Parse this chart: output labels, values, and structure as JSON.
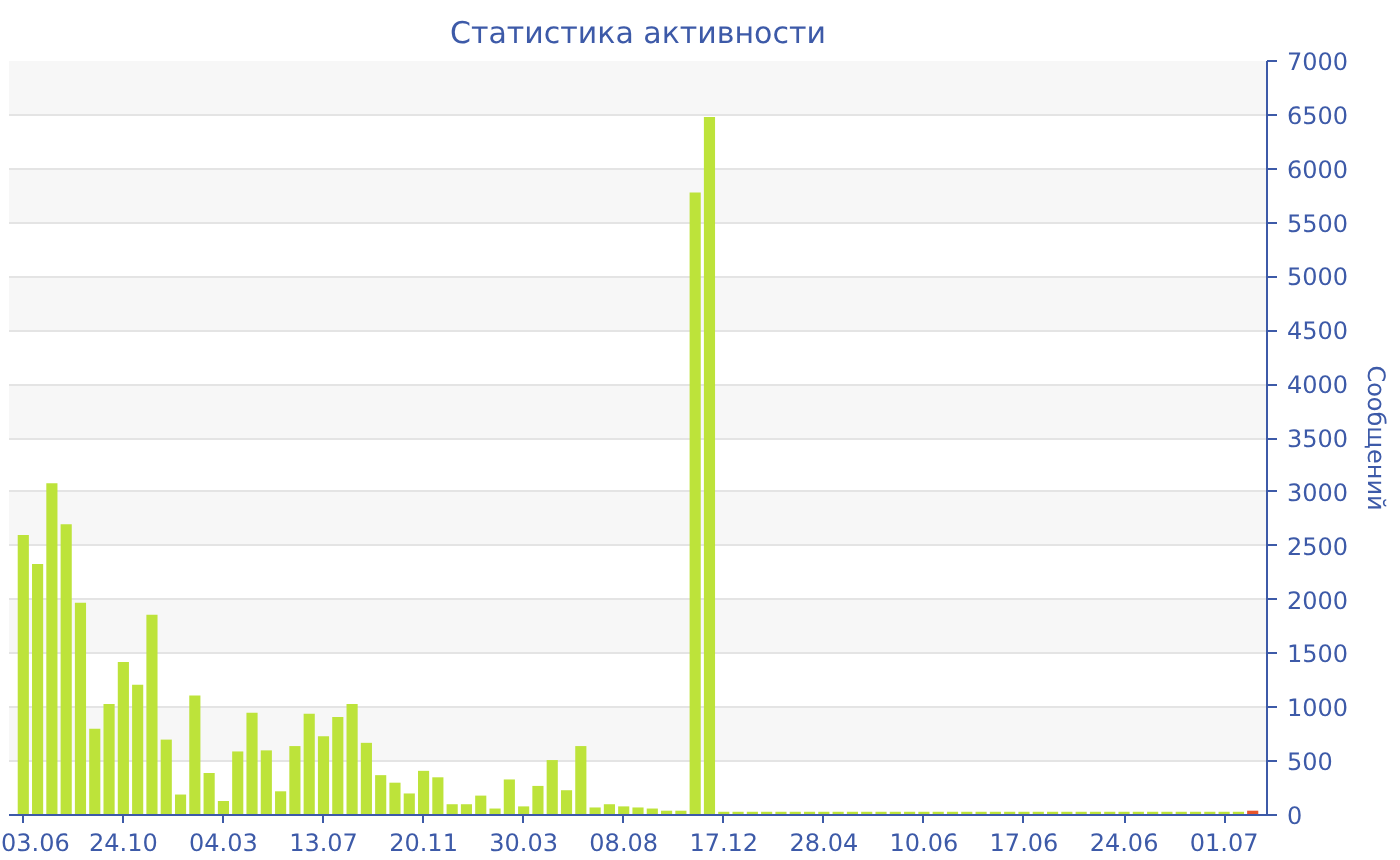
{
  "chart_data": {
    "type": "bar",
    "title": "Статистика активности",
    "ylabel": "Сообщений",
    "categories": [
      "03.06",
      null,
      null,
      null,
      null,
      null,
      null,
      "24.10",
      null,
      null,
      null,
      null,
      null,
      null,
      "04.03",
      null,
      null,
      null,
      null,
      null,
      null,
      "13.07",
      null,
      null,
      null,
      null,
      null,
      null,
      "20.11",
      null,
      null,
      null,
      null,
      null,
      null,
      "30.03",
      null,
      null,
      null,
      null,
      null,
      null,
      "08.08",
      null,
      null,
      null,
      null,
      null,
      null,
      "17.12",
      null,
      null,
      null,
      null,
      null,
      null,
      "28.04",
      null,
      null,
      null,
      null,
      null,
      null,
      "10.06",
      null,
      null,
      null,
      null,
      null,
      null,
      "17.06",
      null,
      null,
      null,
      null,
      null,
      null,
      "24.06",
      null,
      null,
      null,
      null,
      null,
      null,
      "01.07",
      null,
      null
    ],
    "values": [
      2600,
      2330,
      3080,
      2700,
      1970,
      800,
      1030,
      1420,
      1210,
      1860,
      700,
      190,
      1110,
      390,
      130,
      590,
      950,
      600,
      220,
      640,
      940,
      730,
      910,
      1030,
      670,
      370,
      300,
      200,
      410,
      350,
      100,
      100,
      180,
      60,
      330,
      80,
      270,
      510,
      230,
      640,
      70,
      100,
      80,
      70,
      60,
      40,
      40,
      5780,
      6480,
      30,
      30,
      30,
      30,
      30,
      30,
      30,
      30,
      30,
      30,
      30,
      30,
      30,
      30,
      30,
      30,
      30,
      30,
      30,
      30,
      30,
      30,
      30,
      30,
      30,
      30,
      30,
      30,
      30,
      30,
      30,
      30,
      30,
      30,
      30,
      30,
      30,
      40
    ],
    "colors": [
      "#bde33a",
      "#bde33a",
      "#bde33a",
      "#bde33a",
      "#bde33a",
      "#bde33a",
      "#bde33a",
      "#bde33a",
      "#bde33a",
      "#bde33a",
      "#bde33a",
      "#bde33a",
      "#bde33a",
      "#bde33a",
      "#bde33a",
      "#bde33a",
      "#bde33a",
      "#bde33a",
      "#bde33a",
      "#bde33a",
      "#bde33a",
      "#bde33a",
      "#bde33a",
      "#bde33a",
      "#bde33a",
      "#bde33a",
      "#bde33a",
      "#bde33a",
      "#bde33a",
      "#bde33a",
      "#bde33a",
      "#bde33a",
      "#bde33a",
      "#bde33a",
      "#bde33a",
      "#bde33a",
      "#bde33a",
      "#bde33a",
      "#bde33a",
      "#bde33a",
      "#bde33a",
      "#bde33a",
      "#bde33a",
      "#bde33a",
      "#bde33a",
      "#bde33a",
      "#bde33a",
      "#bde33a",
      "#bde33a",
      "#bde33a",
      "#bde33a",
      "#bde33a",
      "#bde33a",
      "#bde33a",
      "#bde33a",
      "#bde33a",
      "#bde33a",
      "#bde33a",
      "#bde33a",
      "#bde33a",
      "#bde33a",
      "#bde33a",
      "#bde33a",
      "#bde33a",
      "#bde33a",
      "#bde33a",
      "#bde33a",
      "#bde33a",
      "#bde33a",
      "#bde33a",
      "#bde33a",
      "#bde33a",
      "#bde33a",
      "#bde33a",
      "#bde33a",
      "#bde33a",
      "#bde33a",
      "#bde33a",
      "#bde33a",
      "#bde33a",
      "#bde33a",
      "#bde33a",
      "#bde33a",
      "#bde33a",
      "#bde33a",
      "#bde33a",
      "#e8552a"
    ],
    "ylim": [
      0,
      7000
    ],
    "yticks": [
      0,
      500,
      1000,
      1500,
      2000,
      2500,
      3000,
      3500,
      4000,
      4500,
      5000,
      5500,
      6000,
      6500,
      7000
    ],
    "grid": "y"
  }
}
